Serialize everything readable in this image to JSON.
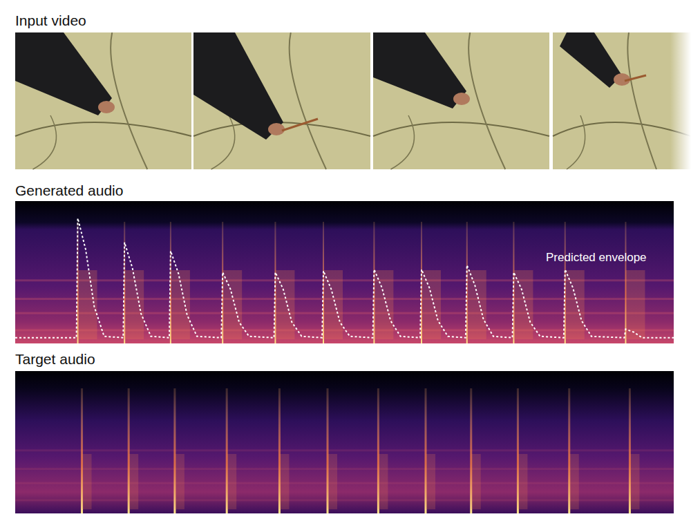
{
  "labels": {
    "video": "Input video",
    "generated": "Generated audio",
    "target": "Target audio"
  },
  "chart_data": {
    "type": "line",
    "annotation": "Predicted envelope",
    "x": [
      0,
      9.3,
      9.5,
      10.7,
      12,
      13.5,
      16.4,
      16.6,
      17.8,
      19.1,
      20.6,
      23.4,
      23.6,
      24.8,
      26.1,
      27.6,
      31.3,
      31.5,
      32.7,
      34,
      35.5,
      39.3,
      39.5,
      40.7,
      42,
      43.5,
      46.6,
      46.8,
      48,
      49.3,
      50.8,
      54.3,
      54.5,
      55.7,
      57,
      58.5,
      61.5,
      61.7,
      62.9,
      64.2,
      65.7,
      68.4,
      68.6,
      69.8,
      71.1,
      72.6,
      75.5,
      75.7,
      76.9,
      78.2,
      79.7,
      83.3,
      83.5,
      84.7,
      86,
      87.5,
      92.5,
      92.7,
      93.9,
      95.2,
      100
    ],
    "values": [
      0.04,
      0.04,
      0.88,
      0.66,
      0.26,
      0.05,
      0.04,
      0.71,
      0.53,
      0.21,
      0.05,
      0.04,
      0.65,
      0.49,
      0.2,
      0.05,
      0.04,
      0.5,
      0.38,
      0.15,
      0.05,
      0.04,
      0.5,
      0.38,
      0.15,
      0.05,
      0.04,
      0.51,
      0.38,
      0.15,
      0.05,
      0.04,
      0.52,
      0.39,
      0.16,
      0.05,
      0.04,
      0.52,
      0.39,
      0.16,
      0.05,
      0.04,
      0.55,
      0.41,
      0.17,
      0.05,
      0.04,
      0.5,
      0.38,
      0.15,
      0.05,
      0.04,
      0.52,
      0.39,
      0.16,
      0.05,
      0.04,
      0.1,
      0.08,
      0.04,
      0.04
    ],
    "xlim": [
      0,
      100
    ],
    "ylim": [
      0,
      1
    ],
    "tick_labels": false,
    "color": "#ffffff",
    "line_style": "dotted"
  }
}
